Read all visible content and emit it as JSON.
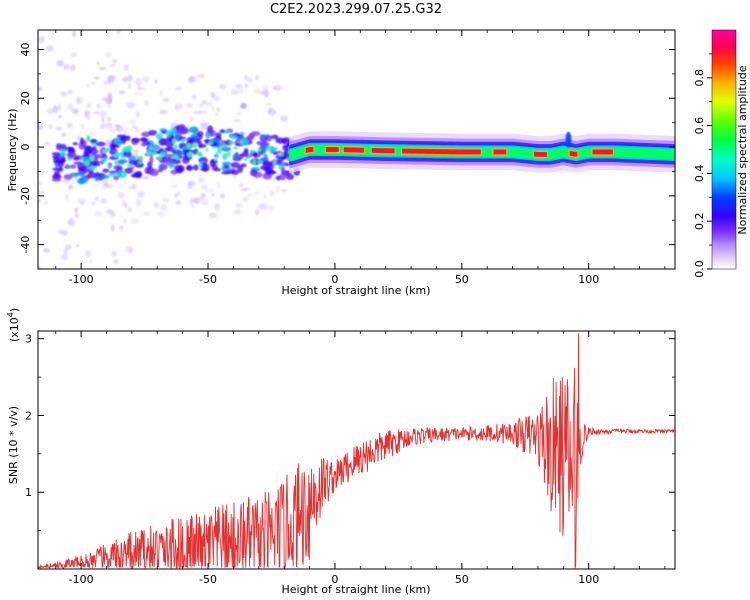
{
  "title": "C2E2.2023.299.07.25.G32",
  "chart_data": [
    {
      "type": "heatmap",
      "title": "C2E2.2023.299.07.25.G32",
      "xlabel": "Height of straight line (km)",
      "ylabel": "Frequency (Hz)",
      "xlim": [
        -117,
        134
      ],
      "ylim": [
        -50,
        48
      ],
      "x_ticks": [
        -100,
        -50,
        0,
        50,
        100
      ],
      "y_ticks": [
        -40,
        -20,
        0,
        20,
        40
      ],
      "colorbar": {
        "label": "Normalized spectral amplitude",
        "range": [
          0,
          1
        ],
        "ticks": [
          0.0,
          0.2,
          0.4,
          0.6,
          0.8
        ],
        "tick_labels": [
          "0.0",
          "0.2",
          "0.4",
          "0.6",
          "0.8"
        ]
      },
      "ridge": {
        "x": [
          -117,
          -100,
          -80,
          -60,
          -40,
          -20,
          -10,
          0,
          20,
          50,
          70,
          80,
          85,
          90,
          95,
          100,
          110,
          134
        ],
        "freq": [
          -6,
          -5,
          -4,
          -1,
          -2,
          -4,
          -1,
          -1,
          -1.5,
          -2,
          -2,
          -3,
          -3,
          -2,
          -3,
          -2,
          -2,
          -3
        ]
      },
      "grid": false
    },
    {
      "type": "line",
      "xlabel": "Height of straight line (km)",
      "ylabel": "SNR (10 * v/v)",
      "y_exponent_label": "(x10",
      "y_exponent_power": "4",
      "y_exponent_close": ")",
      "xlim": [
        -117,
        134
      ],
      "ylim": [
        0,
        3.1
      ],
      "x_ticks": [
        -100,
        -50,
        0,
        50,
        100
      ],
      "y_ticks": [
        1,
        2,
        3
      ],
      "series": [
        {
          "color": "#e53030",
          "envelope": {
            "x": [
              -117,
              -100,
              -80,
              -60,
              -40,
              -25,
              -15,
              -10,
              -5,
              0,
              10,
              20,
              30,
              50,
              70,
              80,
              85,
              90,
              93,
              95,
              97,
              100,
              110,
              134
            ],
            "base": [
              0.02,
              0.1,
              0.25,
              0.35,
              0.45,
              0.55,
              0.8,
              1.0,
              1.2,
              1.25,
              1.5,
              1.65,
              1.75,
              1.78,
              1.8,
              1.8,
              1.75,
              1.7,
              1.6,
              1.3,
              1.75,
              1.8,
              1.8,
              1.8
            ],
            "amp": [
              0.02,
              0.1,
              0.3,
              0.45,
              0.55,
              0.6,
              0.7,
              0.8,
              0.4,
              0.2,
              0.25,
              0.2,
              0.12,
              0.08,
              0.15,
              0.35,
              0.9,
              1.1,
              1.3,
              1.7,
              0.3,
              0.05,
              0.03,
              0.02
            ]
          },
          "peak": {
            "x": 96,
            "y": 3.07
          }
        }
      ],
      "grid": false
    }
  ]
}
